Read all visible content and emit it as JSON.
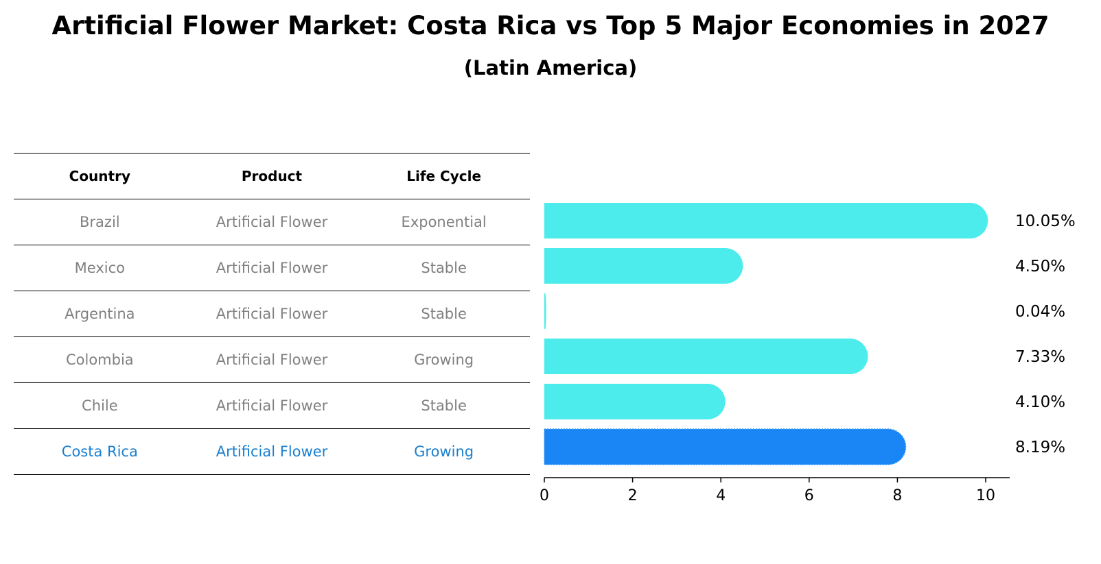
{
  "title": "Artificial Flower Market: Costa Rica vs Top 5 Major Economies in 2027",
  "subtitle": "(Latin America)",
  "table": {
    "headers": [
      "Country",
      "Product",
      "Life Cycle"
    ],
    "rows": [
      [
        "Brazil",
        "Artificial Flower",
        "Exponential"
      ],
      [
        "Mexico",
        "Artificial Flower",
        "Stable"
      ],
      [
        "Argentina",
        "Artificial Flower",
        "Stable"
      ],
      [
        "Colombia",
        "Artificial Flower",
        "Growing"
      ],
      [
        "Chile",
        "Artificial Flower",
        "Stable"
      ],
      [
        "Costa Rica",
        "Artificial Flower",
        "Growing"
      ]
    ]
  },
  "chart_data": {
    "type": "bar",
    "orientation": "horizontal",
    "categories": [
      "Brazil",
      "Mexico",
      "Argentina",
      "Colombia",
      "Chile",
      "Costa Rica"
    ],
    "values": [
      10.05,
      4.5,
      0.04,
      7.33,
      4.1,
      8.19
    ],
    "value_labels": [
      "10.05%",
      "4.50%",
      "0.04%",
      "7.33%",
      "4.10%",
      "8.19%"
    ],
    "highlight": "Costa Rica",
    "xlim": [
      0,
      10.55
    ],
    "xticks": [
      0,
      2,
      4,
      6,
      8,
      10
    ],
    "colors": {
      "default": "#4beceb",
      "highlight": "#1a85f5"
    },
    "title": "Artificial Flower Market: Costa Rica vs Top 5 Major Economies in 2027",
    "xlabel": "",
    "ylabel": ""
  }
}
